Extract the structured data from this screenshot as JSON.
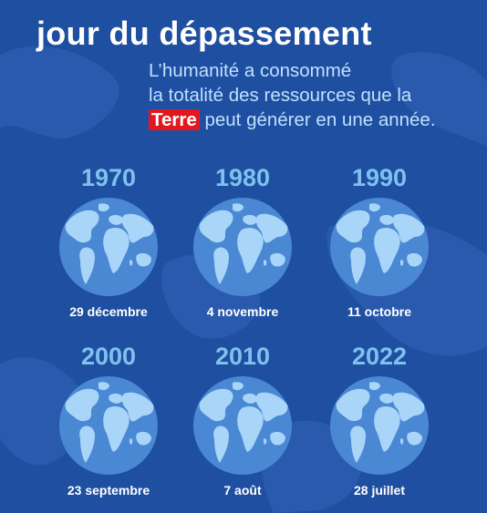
{
  "title": "jour du dépassement",
  "subtitle": {
    "line1": "L’humanité a consommé",
    "line2": "la totalité des ressources que la",
    "highlight": "Terre",
    "line3_rest": "peut générer en une année."
  },
  "colors": {
    "background": "#1f4fa0",
    "year": "#7fc1ee",
    "highlight": "#e3181f",
    "globe_ocean": "#4b88d4",
    "globe_land": "#a9d5f8"
  },
  "entries": [
    {
      "year": "1970",
      "date": "29 décembre"
    },
    {
      "year": "1980",
      "date": "4 novembre"
    },
    {
      "year": "1990",
      "date": "11 octobre"
    },
    {
      "year": "2000",
      "date": "23 septembre"
    },
    {
      "year": "2010",
      "date": "7 août"
    },
    {
      "year": "2022",
      "date": "28 juillet"
    }
  ]
}
